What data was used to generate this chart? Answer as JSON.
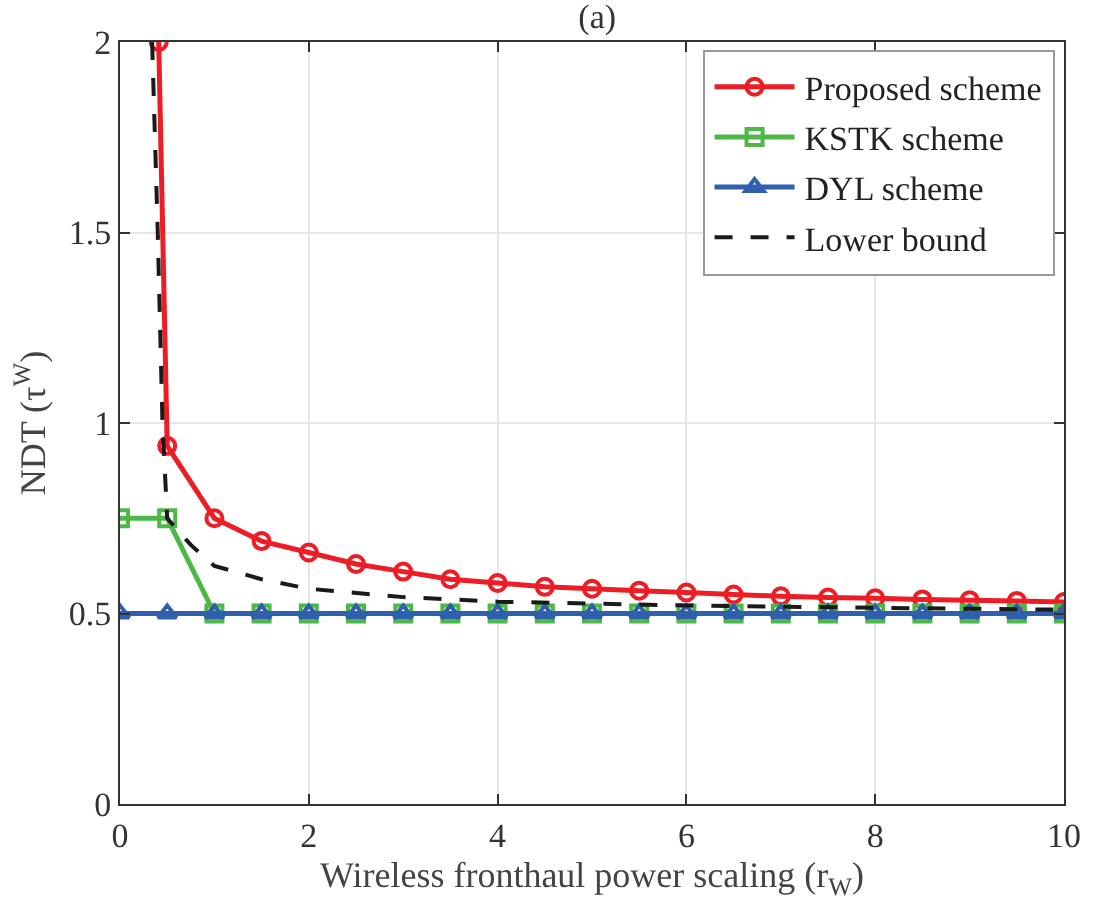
{
  "chart_data": {
    "type": "line",
    "title": "(a)",
    "xlabel": "Wireless fronthaul power scaling (r$_{W}$)",
    "ylabel": "NDT (τ$^{W}$)",
    "xlim": [
      0,
      10
    ],
    "xticks": [
      0,
      2,
      4,
      6,
      8,
      10
    ],
    "ylim": [
      0,
      2
    ],
    "yticks": [
      0,
      0.5,
      1,
      1.5,
      2
    ],
    "grid": true,
    "legend": "top right",
    "series": [
      {
        "name": "Proposed scheme",
        "color": "#ee1c25",
        "marker": "circle",
        "line_style": "solid",
        "x": [
          0.41,
          0.5,
          1,
          1.5,
          2,
          2.5,
          3,
          3.5,
          4,
          4.5,
          5,
          5.5,
          6,
          6.5,
          7,
          7.5,
          8,
          8.5,
          9,
          9.5,
          10
        ],
        "values": [
          2,
          0.94,
          0.75,
          0.69,
          0.66,
          0.63,
          0.61,
          0.59,
          0.58,
          0.57,
          0.565,
          0.56,
          0.555,
          0.55,
          0.545,
          0.542,
          0.54,
          0.537,
          0.535,
          0.533,
          0.53
        ]
      },
      {
        "name": "KSTK scheme",
        "color": "#4db848",
        "marker": "square",
        "line_style": "solid",
        "x": [
          0,
          0.5,
          1,
          1.5,
          2,
          2.5,
          3,
          3.5,
          4,
          4.5,
          5,
          5.5,
          6,
          6.5,
          7,
          7.5,
          8,
          8.5,
          9,
          9.5,
          10
        ],
        "values": [
          0.75,
          0.75,
          0.5,
          0.5,
          0.5,
          0.5,
          0.5,
          0.5,
          0.5,
          0.5,
          0.5,
          0.5,
          0.5,
          0.5,
          0.5,
          0.5,
          0.5,
          0.5,
          0.5,
          0.5,
          0.5
        ]
      },
      {
        "name": "DYL scheme",
        "color": "#2f5fad",
        "marker": "triangle",
        "line_style": "solid",
        "x": [
          0,
          0.5,
          1,
          1.5,
          2,
          2.5,
          3,
          3.5,
          4,
          4.5,
          5,
          5.5,
          6,
          6.5,
          7,
          7.5,
          8,
          8.5,
          9,
          9.5,
          10
        ],
        "values": [
          0.5,
          0.5,
          0.5,
          0.5,
          0.5,
          0.5,
          0.5,
          0.5,
          0.5,
          0.5,
          0.5,
          0.5,
          0.5,
          0.5,
          0.5,
          0.5,
          0.5,
          0.5,
          0.5,
          0.5,
          0.5
        ]
      },
      {
        "name": "Lower bound",
        "color": "#1a1a1a",
        "marker": "none",
        "line_style": "dashed",
        "x": [
          0.34,
          0.4,
          0.45,
          0.5,
          0.75,
          1,
          1.5,
          2,
          3,
          4,
          5,
          6,
          8,
          10
        ],
        "values": [
          2,
          1.5,
          1.0,
          0.75,
          0.68,
          0.625,
          0.59,
          0.565,
          0.543,
          0.531,
          0.526,
          0.521,
          0.515,
          0.51
        ]
      }
    ]
  }
}
